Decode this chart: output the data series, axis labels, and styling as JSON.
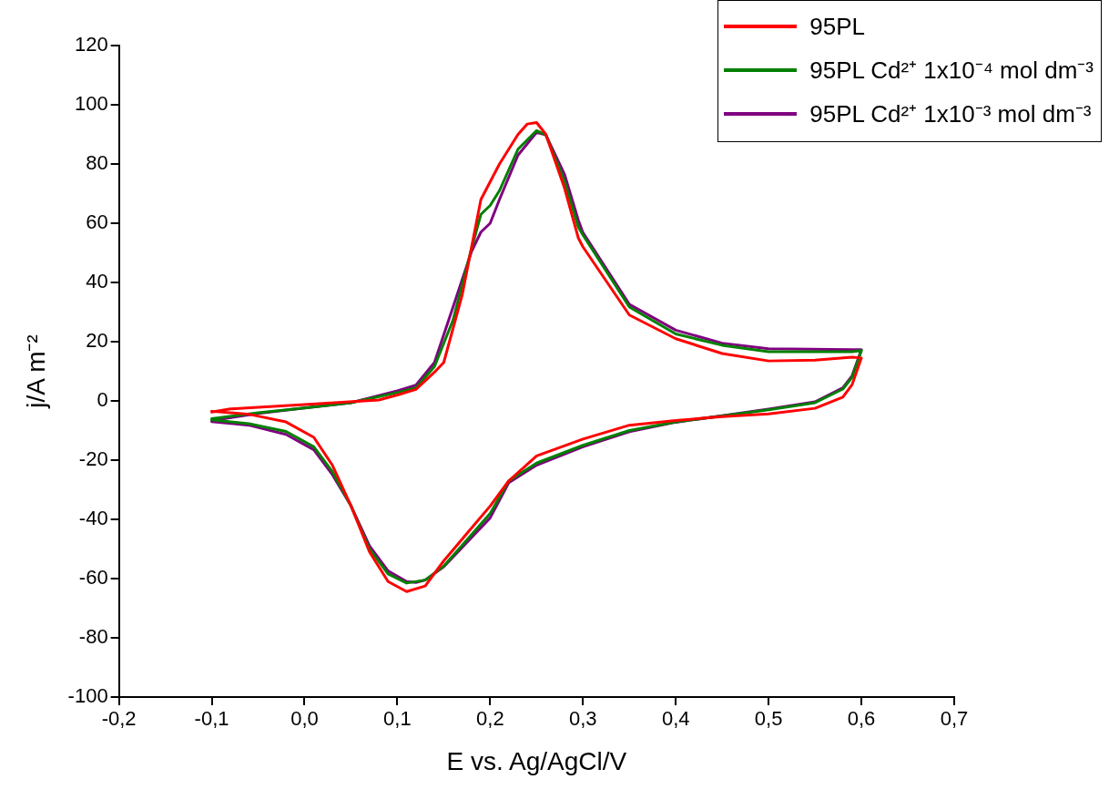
{
  "chart_data": {
    "type": "line",
    "xlabel": "E vs. Ag/AgCl/V",
    "ylabel": "j/A m⁻²",
    "xlim": [
      -0.2,
      0.7
    ],
    "xticks": [
      {
        "value": -0.2,
        "label": "-0,2"
      },
      {
        "value": -0.1,
        "label": "-0,1"
      },
      {
        "value": 0,
        "label": "0,0"
      },
      {
        "value": 0.1,
        "label": "0,1"
      },
      {
        "value": 0.2,
        "label": "0,2"
      },
      {
        "value": 0.3,
        "label": "0,3"
      },
      {
        "value": 0.4,
        "label": "0,4"
      },
      {
        "value": 0.5,
        "label": "0,5"
      },
      {
        "value": 0.6,
        "label": "0,6"
      },
      {
        "value": 0.7,
        "label": "0,7"
      }
    ],
    "ylim": [
      -100,
      120
    ],
    "yticks": [
      -100,
      -80,
      -60,
      -40,
      -20,
      0,
      20,
      40,
      60,
      80,
      100,
      120
    ],
    "legend": "top right",
    "marker": "none",
    "line_style": "solid",
    "series": [
      {
        "name": "95PL",
        "color": "#ff0000",
        "x": [
          -0.1,
          -0.08,
          0,
          0.08,
          0.1,
          0.12,
          0.14,
          0.15,
          0.17,
          0.185,
          0.19,
          0.2,
          0.21,
          0.23,
          0.24,
          0.25,
          0.26,
          0.28,
          0.295,
          0.3,
          0.35,
          0.4,
          0.45,
          0.5,
          0.55,
          0.59,
          0.6,
          0.59,
          0.58,
          0.55,
          0.5,
          0.45,
          0.4,
          0.35,
          0.3,
          0.25,
          0.22,
          0.2,
          0.15,
          0.13,
          0.11,
          0.09,
          0.07,
          0.05,
          0.03,
          0.01,
          -0.02,
          -0.06,
          -0.1
        ],
        "values": [
          -3.8,
          -2.7,
          -1.2,
          0.3,
          2,
          3.9,
          9.7,
          13,
          36,
          60,
          68,
          74,
          80,
          90,
          93.5,
          94,
          90,
          72,
          55,
          52,
          29,
          21,
          16,
          13.5,
          13.8,
          14.8,
          14.5,
          5.5,
          1.3,
          -2.5,
          -4.4,
          -5.3,
          -6.6,
          -8.2,
          -12.9,
          -18.6,
          -27,
          -35.5,
          -54,
          -62.5,
          -64.4,
          -61,
          -51,
          -35.4,
          -21.7,
          -12.3,
          -7.1,
          -4.5,
          -3.5
        ]
      },
      {
        "name": "95PL Cd²⁺ 1x10⁻⁴ mol dm⁻³",
        "color": "#008000",
        "x": [
          -0.1,
          -0.05,
          0,
          0.05,
          0.1,
          0.12,
          0.14,
          0.16,
          0.18,
          0.19,
          0.2,
          0.21,
          0.23,
          0.25,
          0.26,
          0.28,
          0.295,
          0.3,
          0.35,
          0.4,
          0.45,
          0.5,
          0.59,
          0.6,
          0.59,
          0.58,
          0.55,
          0.5,
          0.45,
          0.4,
          0.35,
          0.3,
          0.25,
          0.22,
          0.2,
          0.15,
          0.13,
          0.11,
          0.09,
          0.07,
          0.05,
          0.03,
          0.01,
          -0.02,
          -0.06,
          -0.1
        ],
        "values": [
          -6,
          -4,
          -2.4,
          -0.6,
          2.8,
          4.4,
          11.6,
          27.3,
          51.5,
          63,
          66,
          71,
          85,
          91.3,
          89.8,
          74.4,
          58.7,
          56,
          31.7,
          22.6,
          18.8,
          16.6,
          16.6,
          17,
          8,
          4,
          -0.6,
          -3,
          -5.1,
          -7.1,
          -10,
          -15,
          -21,
          -27,
          -38,
          -55.8,
          -60.5,
          -61.5,
          -58.4,
          -50,
          -35.4,
          -23.9,
          -15.5,
          -10.3,
          -7.7,
          -6.4
        ]
      },
      {
        "name": "95PL Cd²⁺ 1x10⁻³ mol dm⁻³",
        "color": "#800080",
        "x": [
          -0.1,
          -0.05,
          0,
          0.05,
          0.1,
          0.12,
          0.14,
          0.16,
          0.18,
          0.19,
          0.2,
          0.21,
          0.23,
          0.25,
          0.26,
          0.28,
          0.295,
          0.3,
          0.35,
          0.4,
          0.45,
          0.5,
          0.59,
          0.6,
          0.59,
          0.58,
          0.55,
          0.5,
          0.45,
          0.4,
          0.35,
          0.3,
          0.25,
          0.22,
          0.2,
          0.15,
          0.13,
          0.12,
          0.11,
          0.09,
          0.07,
          0.05,
          0.03,
          0.01,
          -0.02,
          -0.06,
          -0.1
        ],
        "values": [
          -6.6,
          -4.2,
          -2.4,
          -0.6,
          3.4,
          5.3,
          13,
          31.7,
          50.5,
          57,
          60,
          68,
          83,
          90.7,
          89.8,
          76.6,
          61,
          56.8,
          32.6,
          23.9,
          19.5,
          17.6,
          17.3,
          17.3,
          8.5,
          4.4,
          -0.3,
          -2.8,
          -5,
          -7.2,
          -10.4,
          -15.5,
          -21.7,
          -27.6,
          -39.5,
          -56,
          -60.5,
          -61.3,
          -61,
          -57.4,
          -49,
          -35.4,
          -24.9,
          -16.5,
          -11.3,
          -8.2,
          -7
        ]
      }
    ]
  }
}
